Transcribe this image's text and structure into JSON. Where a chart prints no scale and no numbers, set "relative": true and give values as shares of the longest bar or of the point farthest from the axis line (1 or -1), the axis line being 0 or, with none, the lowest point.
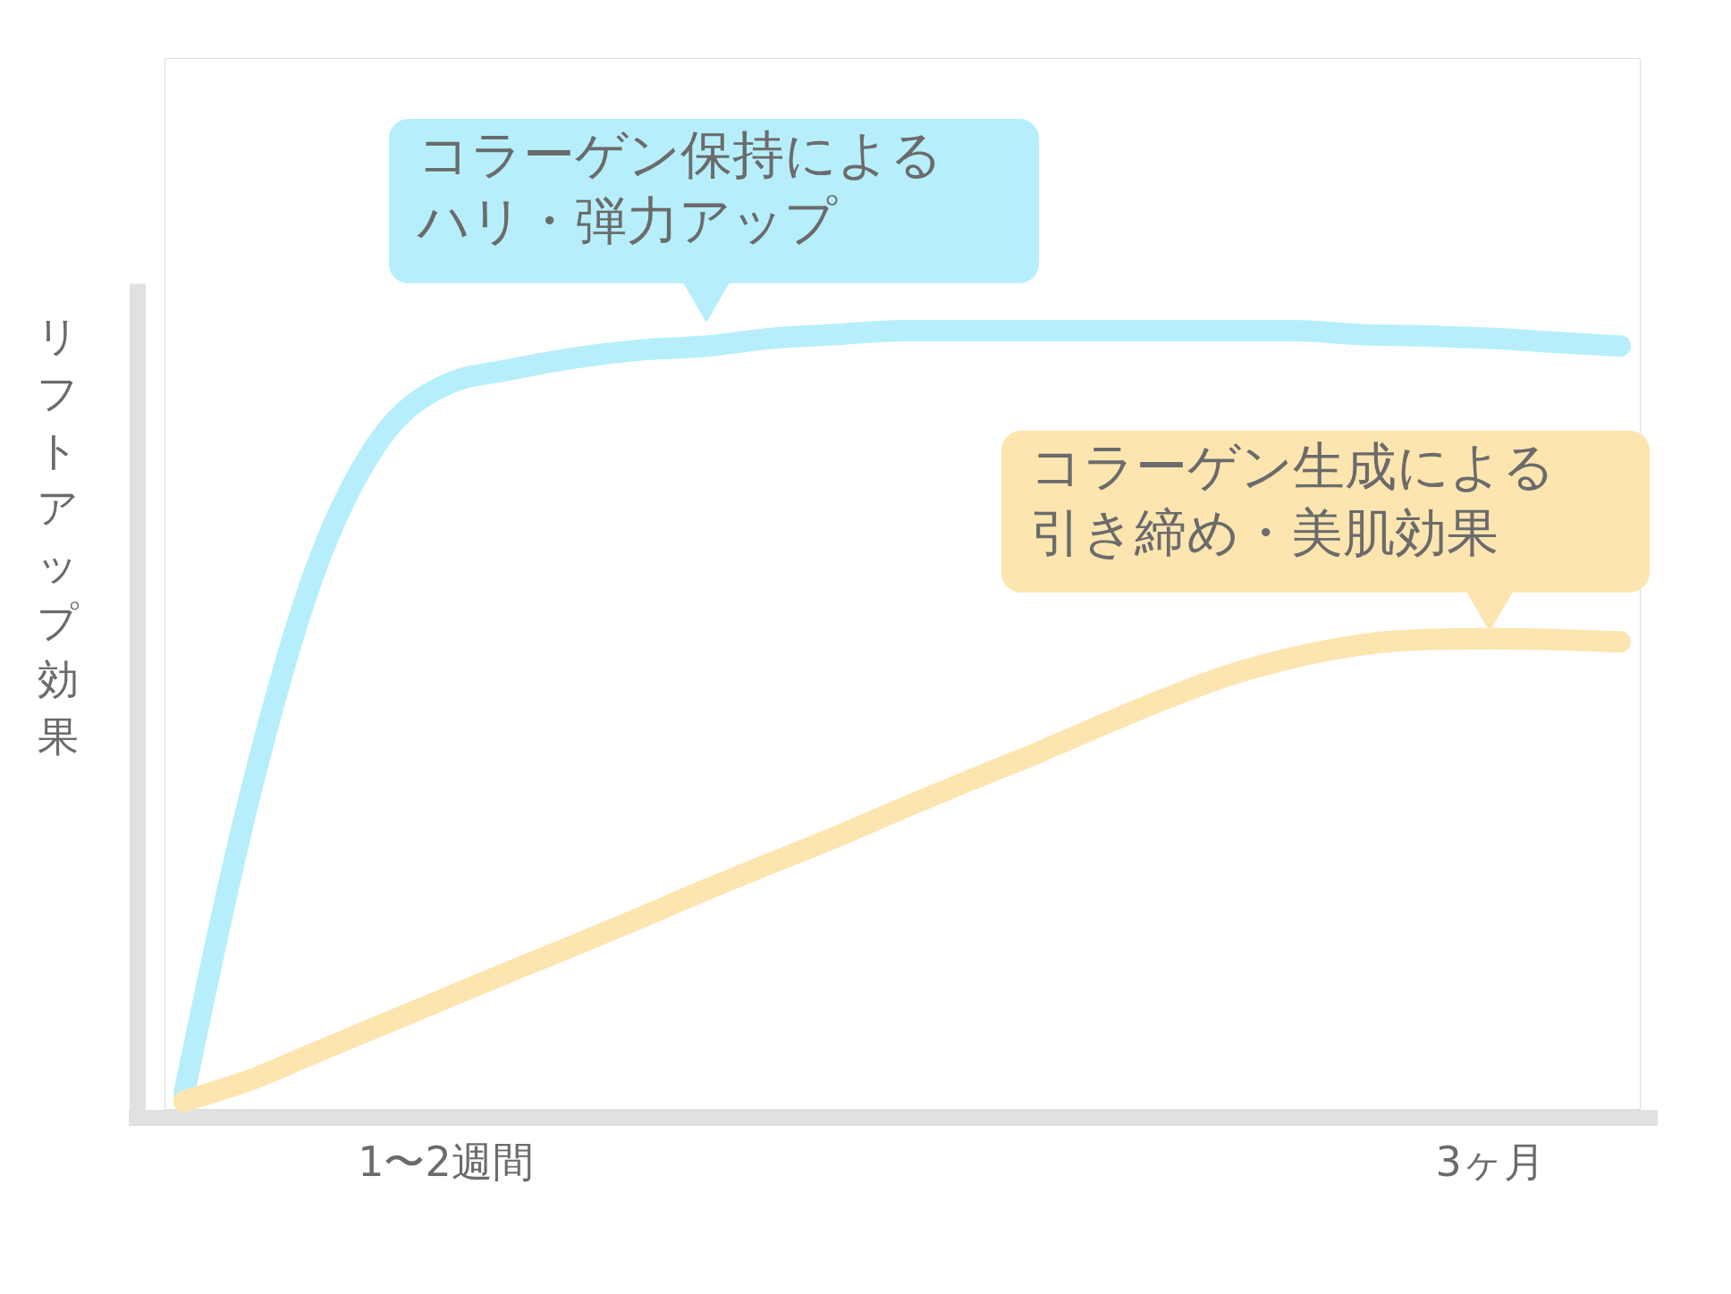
{
  "chart_data": {
    "type": "line",
    "relative": true,
    "ylabel": "リフトアップ効果",
    "categories": [
      null,
      null,
      null,
      null,
      "1〜2週間",
      null,
      null,
      null,
      null,
      null,
      null,
      null,
      null,
      null,
      null,
      null,
      null,
      null,
      null,
      null,
      "3ヶ月",
      null,
      null
    ],
    "series": [
      {
        "name": "コラーゲン保持によるハリ・弾力アップ",
        "color": "#b6effb",
        "values": [
          0.02,
          0.4,
          0.69,
          0.86,
          0.93,
          0.95,
          0.965,
          0.975,
          0.98,
          0.99,
          0.995,
          1.0,
          1.0,
          1.0,
          1.0,
          1.0,
          1.0,
          1.0,
          0.995,
          0.993,
          0.99,
          0.985,
          0.98
        ]
      },
      {
        "name": "コラーゲン生成による引き締め・美肌効果",
        "color": "#fde5b0",
        "values": [
          0.01,
          0.037,
          0.072,
          0.107,
          0.142,
          0.177,
          0.211,
          0.246,
          0.282,
          0.316,
          0.35,
          0.386,
          0.421,
          0.455,
          0.491,
          0.526,
          0.557,
          0.58,
          0.596,
          0.603,
          0.604,
          0.603,
          0.6
        ]
      }
    ],
    "grid": false,
    "line_style": "solid"
  }
}
